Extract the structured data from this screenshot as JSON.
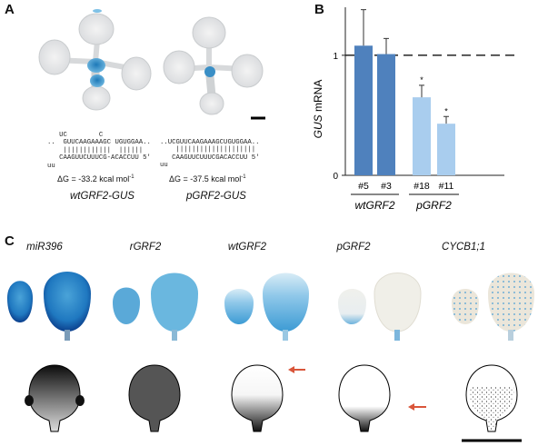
{
  "panels": {
    "a": "A",
    "b": "B",
    "c": "C"
  },
  "panel_a": {
    "left": {
      "seq_top": "   UC        C        ",
      "seq_line1": "..  GUUCAAGAAAGC UGUGGAA..",
      "seq_bars": "    ||||||||||||  ||||||",
      "seq_line2": "   CAAGUUCUUUCG-ACACCUU 5'",
      "seq_bottom": "uu",
      "seq_lead": "5'",
      "dg": "ΔG = -33.2 kcal mol",
      "dg_sup": "-1",
      "construct": "wtGRF2-GUS"
    },
    "right": {
      "seq_line1": "..UCGUUCAAGAAAGCUGUGGAA..",
      "seq_bars": "    ||||||||||||||||||||",
      "seq_line2": "   CAAGUUCUUUCGACACCUU 5'",
      "seq_bottom": "uu",
      "dg": "ΔG = -37.5 kcal mol",
      "dg_sup": "-1",
      "construct": "pGRF2-GUS"
    }
  },
  "chart_data": {
    "type": "bar",
    "ylabel_italic": "GUS",
    "ylabel_rest": " mRNA",
    "yticks": [
      "0",
      "1"
    ],
    "ylim": [
      0,
      1.4
    ],
    "reference_line": 1,
    "categories": [
      "#5",
      "#3",
      "#18",
      "#11"
    ],
    "values": [
      1.08,
      1.01,
      0.65,
      0.43
    ],
    "errors": [
      0.3,
      0.13,
      0.1,
      0.06
    ],
    "significance": [
      "",
      "",
      "*",
      "*"
    ],
    "colors": [
      "#4f81bd",
      "#4f81bd",
      "#a9cdee",
      "#a9cdee"
    ],
    "groups": [
      {
        "label": "wtGRF2",
        "members": [
          0,
          1
        ]
      },
      {
        "label": "pGRF2",
        "members": [
          2,
          3
        ]
      }
    ]
  },
  "panel_c": {
    "labels": [
      "miR396",
      "rGRF2",
      "wtGRF2",
      "pGRF2",
      "CYCB1;1"
    ]
  },
  "colors": {
    "gus_blue": "#2b86c8",
    "arrow_red": "#d9553a"
  }
}
